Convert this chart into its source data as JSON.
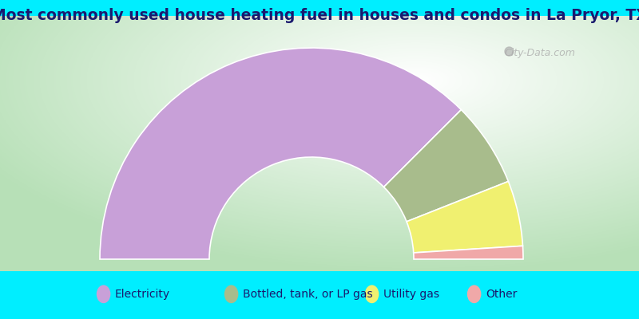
{
  "title": "Most commonly used house heating fuel in houses and condos in La Pryor, TX",
  "segments": [
    {
      "label": "Electricity",
      "value": 75,
      "color": "#c8a0d8"
    },
    {
      "label": "Bottled, tank, or LP gas",
      "value": 13,
      "color": "#a8bc8c"
    },
    {
      "label": "Utility gas",
      "value": 10,
      "color": "#f0f070"
    },
    {
      "label": "Other",
      "value": 2,
      "color": "#f0a8a8"
    }
  ],
  "background_color": "#00eeff",
  "title_color": "#1a1a6e",
  "title_fontsize": 13.5,
  "legend_fontsize": 10,
  "watermark": "City-Data.com"
}
